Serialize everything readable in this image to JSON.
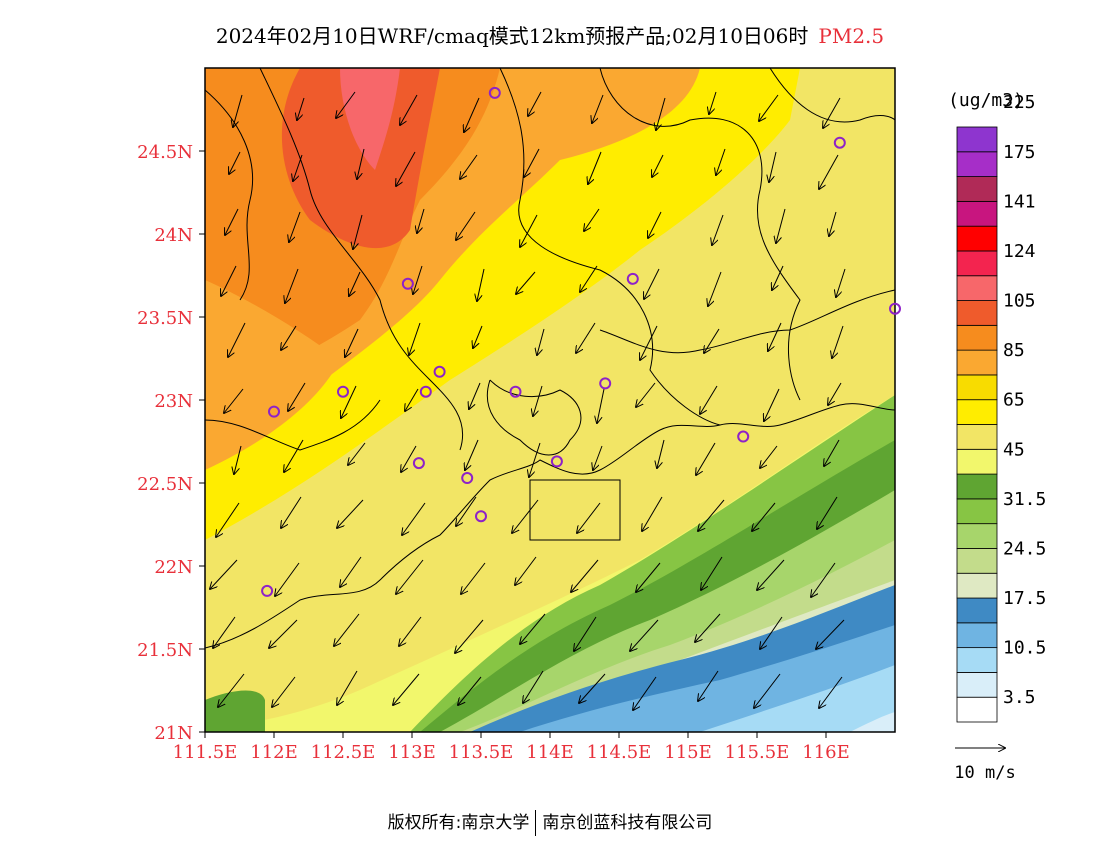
{
  "title": {
    "main": "2024年02月10日WRF/cmaq模式12km预报产品;02月10日06时",
    "pollutant": "PM2.5"
  },
  "axes": {
    "lat_labels": [
      "21N",
      "21.5N",
      "22N",
      "22.5N",
      "23N",
      "23.5N",
      "24N",
      "24.5N"
    ],
    "lon_labels": [
      "111.5E",
      "112E",
      "112.5E",
      "113E",
      "113.5E",
      "114E",
      "114.5E",
      "115E",
      "115.5E",
      "116E"
    ]
  },
  "legend": {
    "unit": "(ug/m3)",
    "colors": [
      "#ffffff",
      "#d9eef9",
      "#a6dbf5",
      "#6fb4e2",
      "#3f8ac4",
      "#dfe9c3",
      "#c3dc8b",
      "#a7d56b",
      "#87c544",
      "#5fa532",
      "#f2f76c",
      "#f2e565",
      "#ffed00",
      "#f8dc00",
      "#faa831",
      "#f68c1e",
      "#ef5b2c",
      "#f7676a",
      "#f3244f",
      "#ff0000",
      "#c8157f",
      "#b02a57",
      "#a62ec8",
      "#8e35cf"
    ],
    "labels": [
      "3.5",
      "10.5",
      "17.5",
      "24.5",
      "31.5",
      "45",
      "65",
      "85",
      "105",
      "124",
      "141",
      "175",
      "225"
    ],
    "wind_ref": "10 m/s"
  },
  "stations": [
    {
      "lon": 113.6,
      "lat": 24.85
    },
    {
      "lon": 116.1,
      "lat": 24.55
    },
    {
      "lon": 112.97,
      "lat": 23.7
    },
    {
      "lon": 114.6,
      "lat": 23.73
    },
    {
      "lon": 116.5,
      "lat": 23.55
    },
    {
      "lon": 113.2,
      "lat": 23.17
    },
    {
      "lon": 112.5,
      "lat": 23.05
    },
    {
      "lon": 113.1,
      "lat": 23.05
    },
    {
      "lon": 113.75,
      "lat": 23.05
    },
    {
      "lon": 114.4,
      "lat": 23.1
    },
    {
      "lon": 112.0,
      "lat": 22.93
    },
    {
      "lon": 115.4,
      "lat": 22.78
    },
    {
      "lon": 113.05,
      "lat": 22.62
    },
    {
      "lon": 113.4,
      "lat": 22.53
    },
    {
      "lon": 114.05,
      "lat": 22.63
    },
    {
      "lon": 113.5,
      "lat": 22.3
    },
    {
      "lon": 111.95,
      "lat": 21.85
    }
  ],
  "footer": {
    "left": "版权所有:南京大学",
    "right": "南京创蓝科技有限公司"
  }
}
